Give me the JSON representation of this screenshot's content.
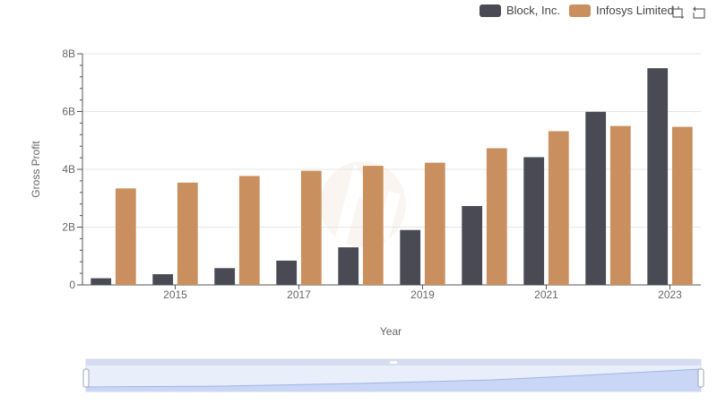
{
  "chart_data": {
    "type": "bar",
    "title": "",
    "xlabel": "Year",
    "ylabel": "Gross Profit",
    "categories": [
      "2014",
      "2015",
      "2016",
      "2017",
      "2018",
      "2019",
      "2020",
      "2021",
      "2022",
      "2023"
    ],
    "x_tick_labels": [
      "2015",
      "2017",
      "2019",
      "2021",
      "2023"
    ],
    "y_tick_labels": [
      "0",
      "2B",
      "4B",
      "6B",
      "8B"
    ],
    "ylim": [
      0,
      8000000000
    ],
    "series": [
      {
        "name": "Block, Inc.",
        "color": "#4a4a55",
        "values": [
          230000000,
          370000000,
          580000000,
          840000000,
          1300000000,
          1900000000,
          2730000000,
          4420000000,
          5990000000,
          7500000000
        ]
      },
      {
        "name": "Infosys Limited",
        "color": "#c98f5e",
        "values": [
          3340000000,
          3540000000,
          3770000000,
          3950000000,
          4120000000,
          4230000000,
          4730000000,
          5320000000,
          5500000000,
          5470000000
        ]
      }
    ],
    "legend_position": "top-right",
    "grid": true
  },
  "toolbar": {
    "icons": [
      "zoom-icon",
      "restore-icon"
    ]
  }
}
